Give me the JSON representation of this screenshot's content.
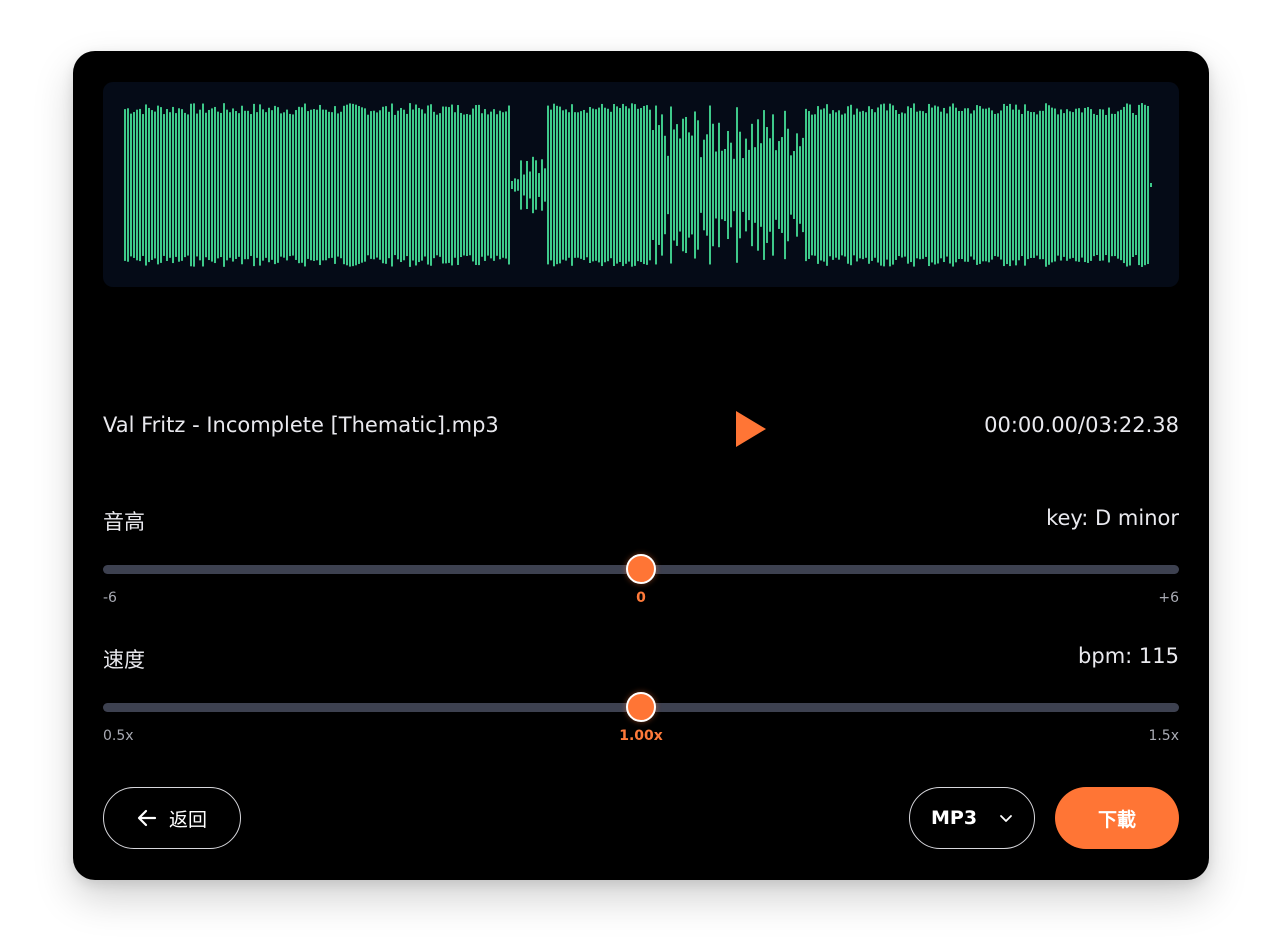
{
  "track": {
    "file_name": "Val Fritz - Incomplete [Thematic].mp3",
    "time": "00:00.00/03:22.38"
  },
  "colors": {
    "accent": "#ff7535",
    "waveform": "#3ec98a",
    "wave_background": "#050b17",
    "card_background": "#000000",
    "slider_track": "#3d4150"
  },
  "icons": {
    "play": "play-icon",
    "back": "arrow-left-icon",
    "dropdown": "chevron-down-icon"
  },
  "pitch": {
    "label": "音高",
    "info": "key: D minor",
    "min_label": "-6",
    "max_label": "+6",
    "value_label": "0",
    "min": -6,
    "max": 6,
    "value": 0
  },
  "tempo": {
    "label": "速度",
    "info": "bpm: 115",
    "min_label": "0.5x",
    "max_label": "1.5x",
    "value_label": "1.00x",
    "min": 0.5,
    "max": 1.5,
    "value": 1.0
  },
  "actions": {
    "back_label": "返回",
    "format_selected": "MP3",
    "download_label": "下載"
  }
}
